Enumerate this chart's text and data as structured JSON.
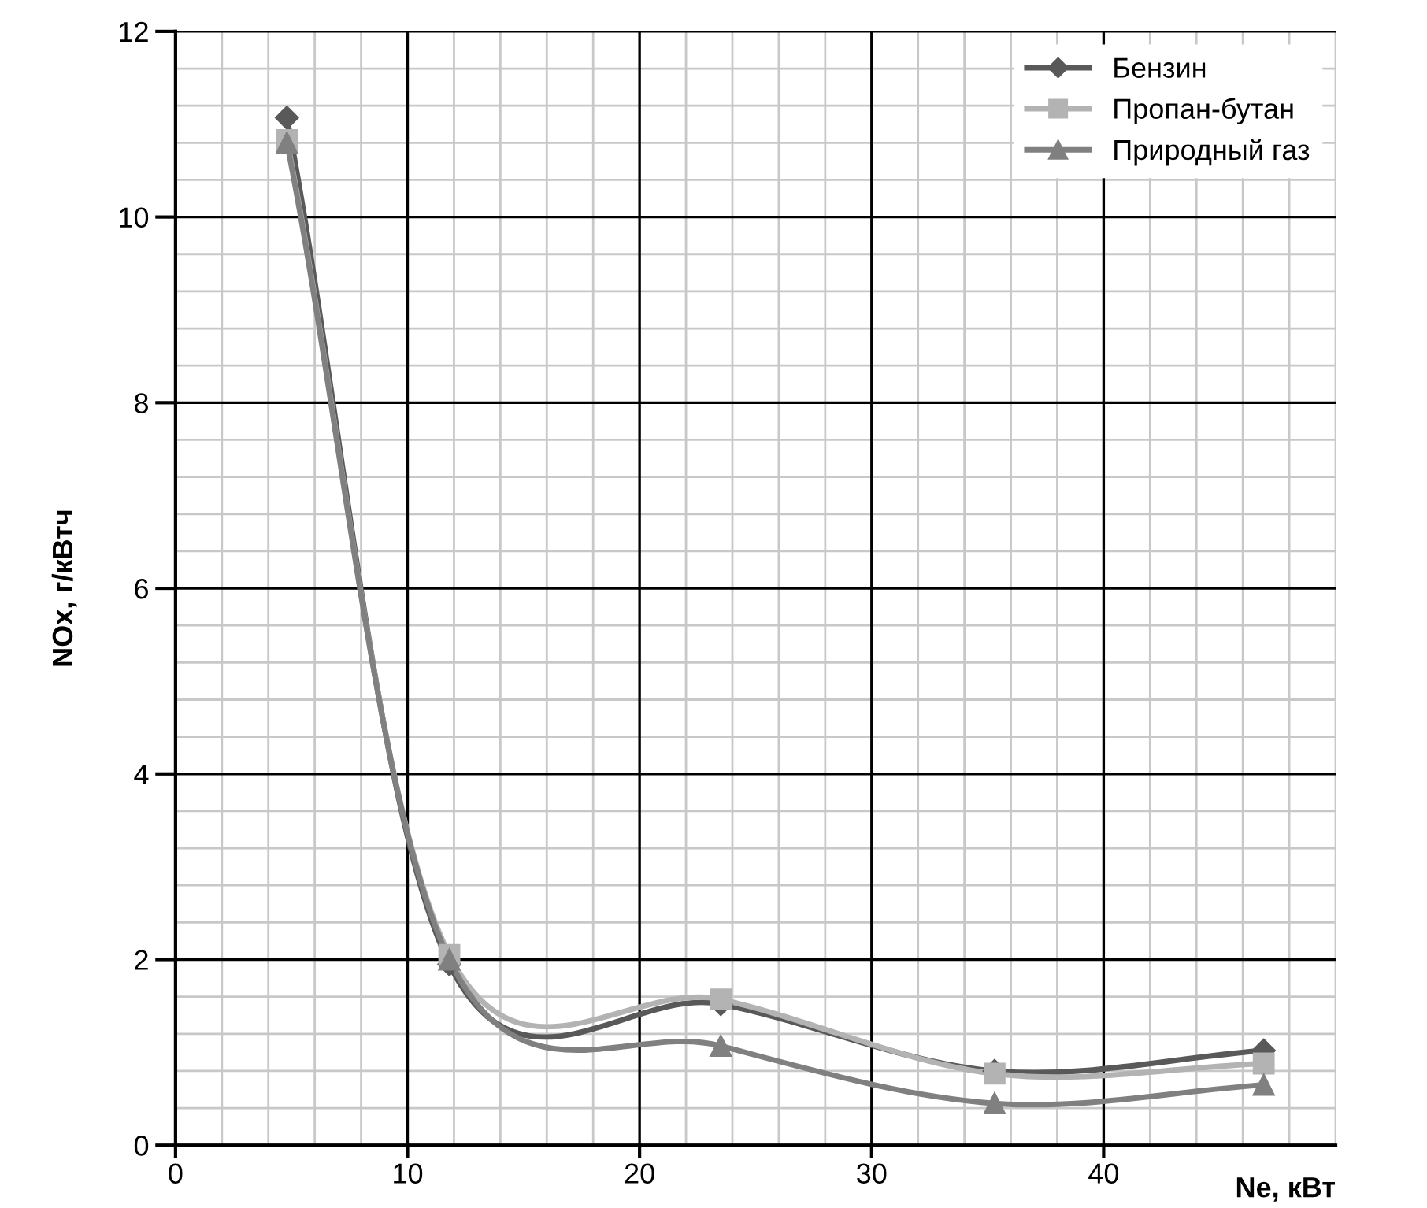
{
  "chart_data": {
    "type": "line",
    "xlabel": "Ne, кВт",
    "ylabel": "NOx, г/кВтч",
    "xlim": [
      0,
      50
    ],
    "ylim": [
      0,
      12
    ],
    "xticks": [
      0,
      {
        "value": 2,
        "label": null
      },
      {
        "value": 4,
        "label": null
      },
      {
        "value": 6,
        "label": null
      },
      {
        "value": 8,
        "label": null
      },
      10,
      {
        "value": 12,
        "label": null
      },
      {
        "value": 14,
        "label": null
      },
      {
        "value": 16,
        "label": null
      },
      {
        "value": 18,
        "label": null
      },
      20,
      {
        "value": 22,
        "label": null
      },
      {
        "value": 24,
        "label": null
      },
      {
        "value": 26,
        "label": null
      },
      {
        "value": 28,
        "label": null
      },
      30,
      {
        "value": 32,
        "label": null
      },
      {
        "value": 34,
        "label": null
      },
      {
        "value": 36,
        "label": null
      },
      {
        "value": 38,
        "label": null
      },
      40,
      {
        "value": 42,
        "label": null
      },
      {
        "value": 44,
        "label": null
      },
      {
        "value": 46,
        "label": null
      },
      {
        "value": 48,
        "label": null
      },
      {
        "value": 50,
        "label": null
      }
    ],
    "yticks": [
      0,
      {
        "value": 0.4,
        "label": null
      },
      {
        "value": 0.8,
        "label": null
      },
      {
        "value": 1.2,
        "label": null
      },
      {
        "value": 1.6,
        "label": null
      },
      2,
      {
        "value": 2.4,
        "label": null
      },
      {
        "value": 2.8,
        "label": null
      },
      {
        "value": 3.2,
        "label": null
      },
      {
        "value": 3.6,
        "label": null
      },
      4,
      {
        "value": 4.4,
        "label": null
      },
      {
        "value": 4.8,
        "label": null
      },
      {
        "value": 5.2,
        "label": null
      },
      {
        "value": 5.6,
        "label": null
      },
      6,
      {
        "value": 6.4,
        "label": null
      },
      {
        "value": 6.8,
        "label": null
      },
      {
        "value": 7.2,
        "label": null
      },
      {
        "value": 7.6,
        "label": null
      },
      8,
      {
        "value": 8.4,
        "label": null
      },
      {
        "value": 8.8,
        "label": null
      },
      {
        "value": 9.2,
        "label": null
      },
      {
        "value": 9.6,
        "label": null
      },
      10,
      {
        "value": 10.4,
        "label": null
      },
      {
        "value": 10.8,
        "label": null
      },
      {
        "value": 11.2,
        "label": null
      },
      {
        "value": 11.6,
        "label": null
      },
      12
    ],
    "x": [
      4.8,
      11.8,
      23.5,
      35.3,
      46.9
    ],
    "grid": true,
    "legend": "top right",
    "line_style": "solid",
    "series": [
      {
        "name": "Бензин",
        "color": "#595959",
        "marker": "diamond",
        "values": [
          11.07,
          1.95,
          1.52,
          0.8,
          1.02
        ]
      },
      {
        "name": "Пропан-бутан",
        "color": "#b3b3b3",
        "marker": "square",
        "values": [
          10.83,
          2.05,
          1.57,
          0.77,
          0.88
        ]
      },
      {
        "name": "Природный газ",
        "color": "#808080",
        "marker": "triangle",
        "values": [
          10.8,
          2.0,
          1.07,
          0.45,
          0.65
        ]
      }
    ]
  }
}
